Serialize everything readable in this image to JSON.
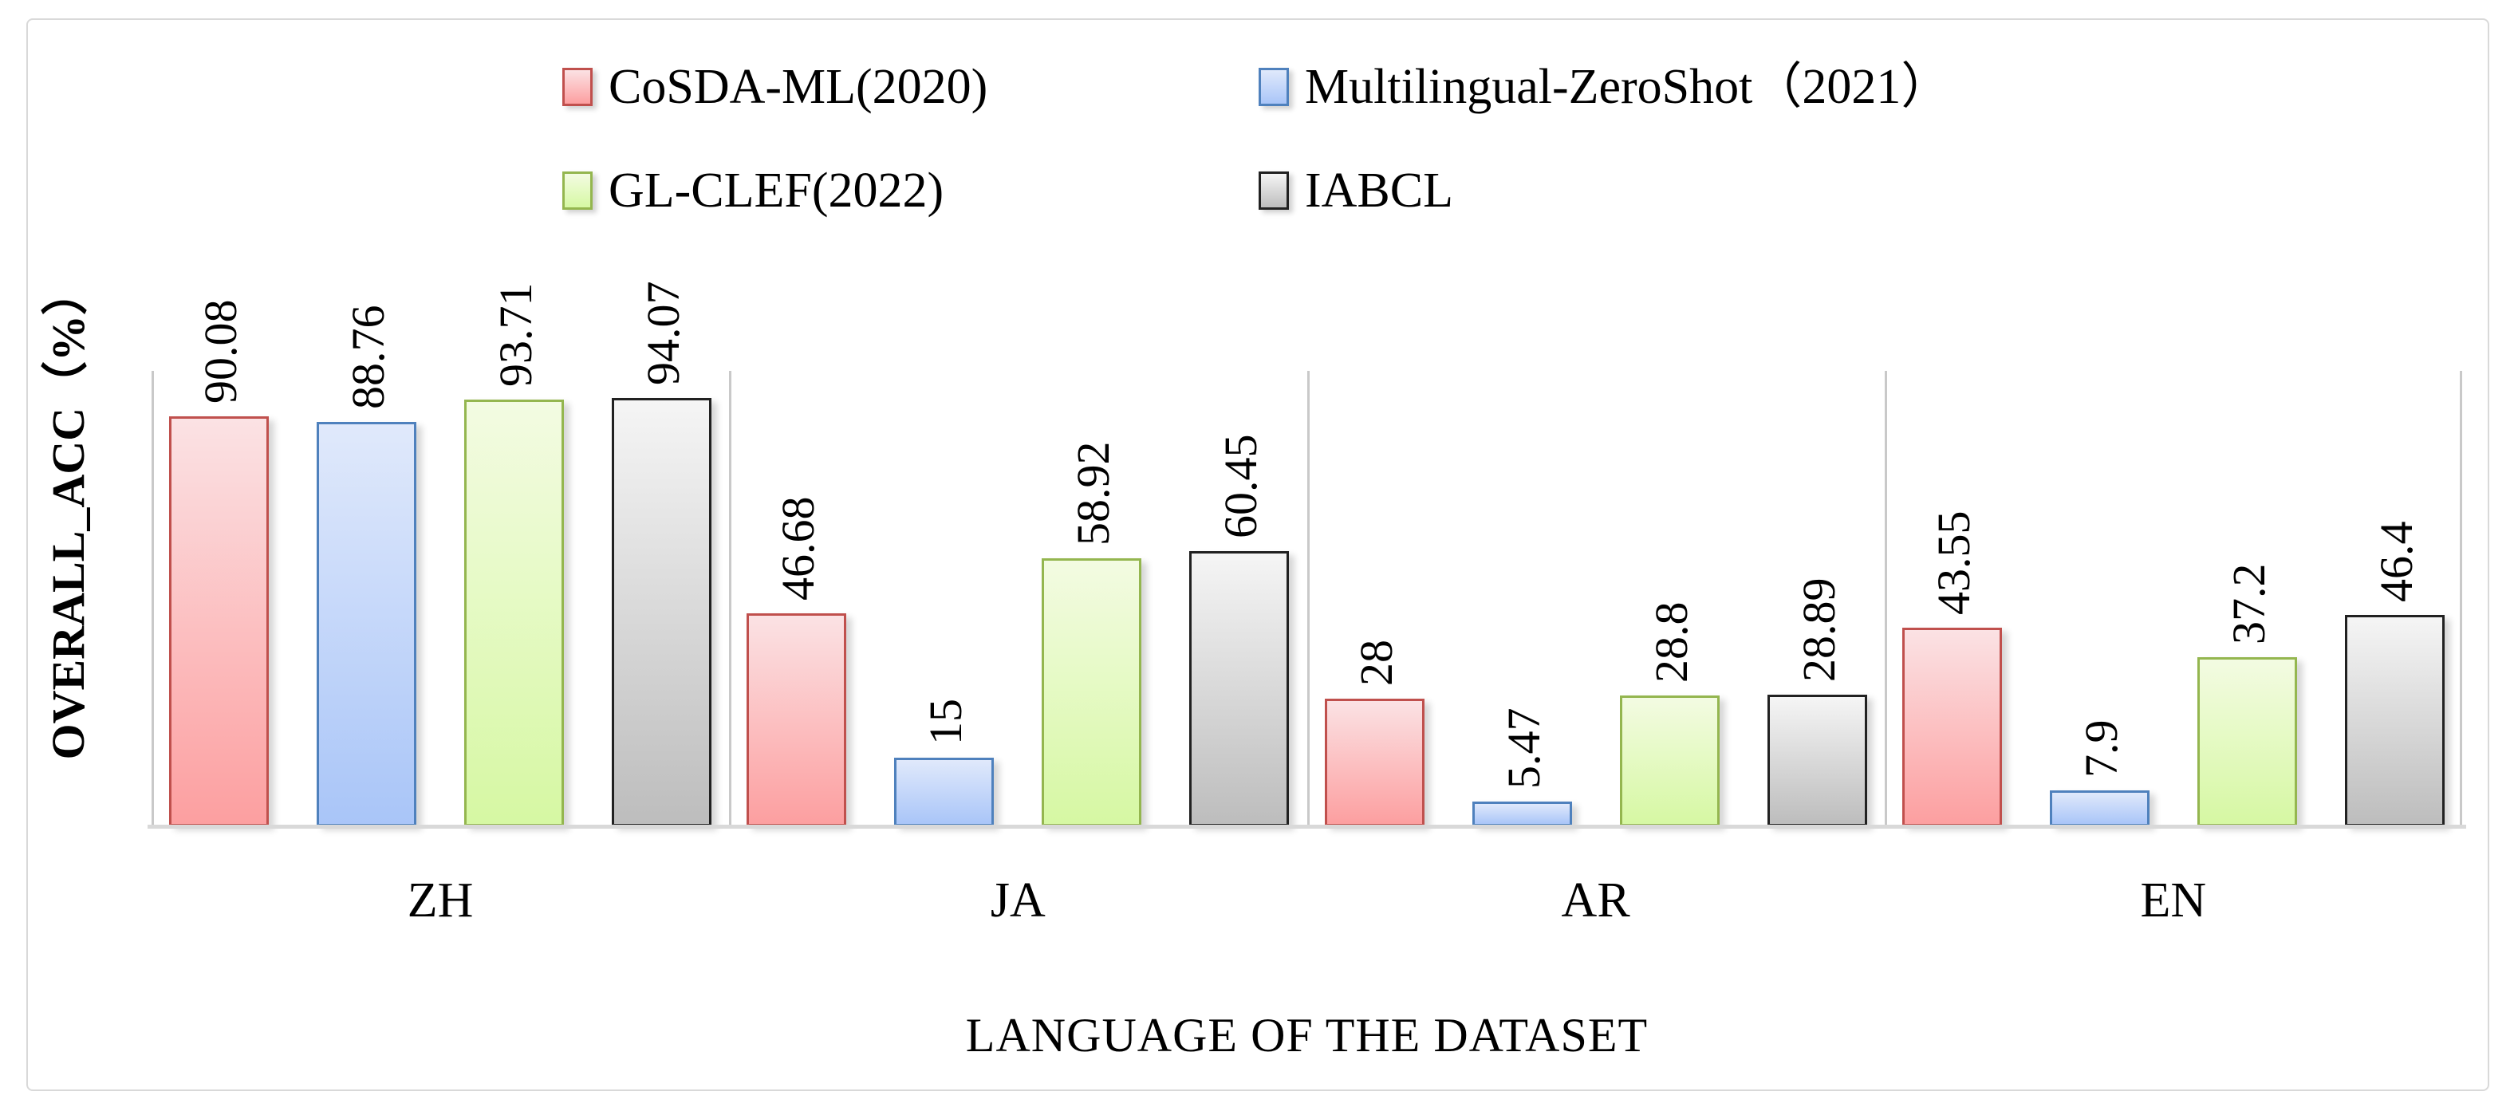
{
  "chart_data": {
    "type": "bar",
    "title": "",
    "categories": [
      "ZH",
      "JA",
      "AR",
      "EN"
    ],
    "series": [
      {
        "name": "CoSDA-ML(2020)",
        "values": [
          90.08,
          46.68,
          28,
          43.55
        ],
        "color": {
          "border": "#C0504D",
          "fill_top": "#FBE2E4",
          "fill_bottom": "#FC9FA0"
        }
      },
      {
        "name": "Multilingual-ZeroShot（2021）",
        "values": [
          88.76,
          15,
          5.47,
          7.9
        ],
        "color": {
          "border": "#4F81BD",
          "fill_top": "#E0E9FB",
          "fill_bottom": "#A9C5F8"
        }
      },
      {
        "name": "GL-CLEF(2022)",
        "values": [
          93.71,
          58.92,
          28.8,
          37.2
        ],
        "color": {
          "border": "#94B64F",
          "fill_top": "#F3FBE2",
          "fill_bottom": "#D6F8A3"
        }
      },
      {
        "name": "IABCL",
        "values": [
          94.07,
          60.45,
          28.89,
          46.4
        ],
        "color": {
          "border": "#212121",
          "fill_top": "#F5F5F5",
          "fill_bottom": "#BDBDBD"
        }
      }
    ],
    "xlabel": "LANGUAGE OF THE DATASET",
    "ylabel": "OVERALL_ACC（%）",
    "ylim": [
      0,
      100
    ],
    "grid": "vertical panel separators between category groups, no horizontal gridlines",
    "legend_position": "top, two rows by two columns",
    "bar_value_labels": "values printed above bars, rotated 90° reading bottom-to-top",
    "axis_line_color": "#D9D9D9",
    "separator_color": "#C9C9C9",
    "figure_border_color": "#D9D9D9",
    "background": "#FFFFFF"
  }
}
